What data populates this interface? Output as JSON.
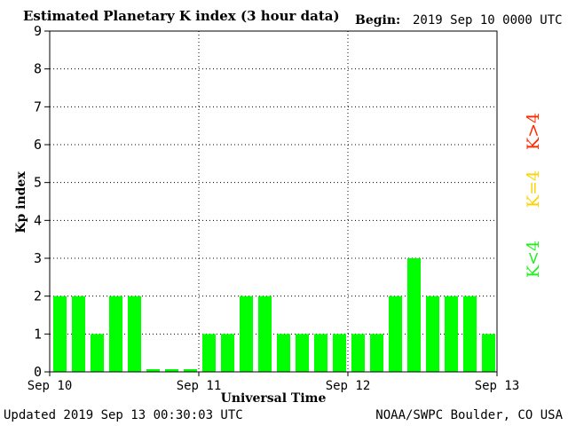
{
  "header": {
    "title": "Estimated Planetary K index (3 hour data)",
    "begin_label": "Begin:",
    "begin_value": "2019 Sep 10 0000 UTC"
  },
  "footer": {
    "updated": "Updated 2019 Sep 13 00:30:03 UTC",
    "credit": "NOAA/SWPC Boulder, CO USA"
  },
  "legend": [
    {
      "label": "K>4",
      "color": "#ff2a00"
    },
    {
      "label": "K=4",
      "color": "#ffd200"
    },
    {
      "label": "K<4",
      "color": "#22ee22"
    }
  ],
  "chart_data": {
    "type": "bar",
    "title": "Estimated Planetary K index (3 hour data)",
    "xlabel": "Universal Time",
    "ylabel": "Kp index",
    "ylim": [
      0,
      9
    ],
    "yticks": [
      0,
      1,
      2,
      3,
      4,
      5,
      6,
      7,
      8,
      9
    ],
    "xtick_labels": [
      "Sep 10",
      "Sep 11",
      "Sep 12",
      "Sep 13"
    ],
    "grid": "dotted",
    "bar_color": "#00ff00",
    "values": [
      2,
      2,
      1,
      2,
      2,
      0,
      0,
      0,
      1,
      1,
      2,
      2,
      1,
      1,
      1,
      1,
      1,
      1,
      2,
      3,
      2,
      2,
      2,
      1
    ]
  }
}
